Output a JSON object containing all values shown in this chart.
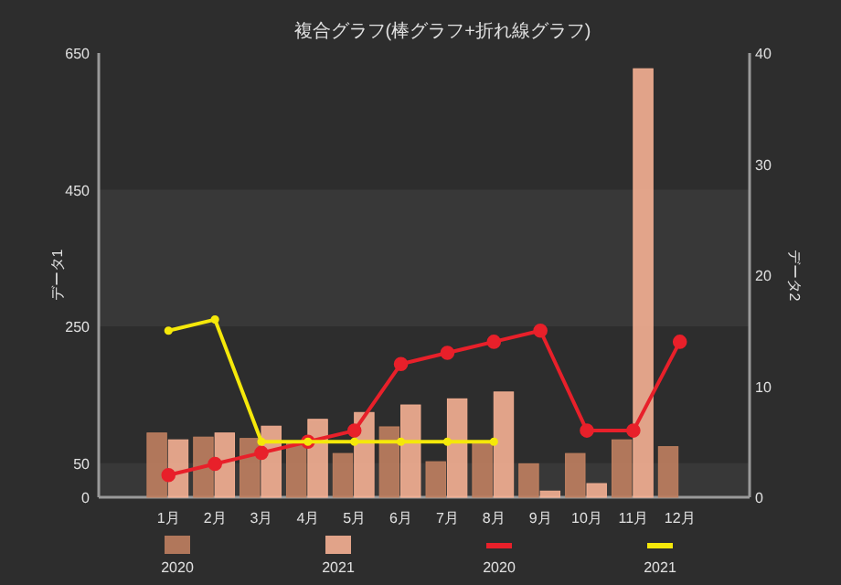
{
  "chart_data": {
    "type": "bar",
    "title": "複合グラフ(棒グラフ+折れ線グラフ)",
    "ylabel": "データ1",
    "y2label": "データ2",
    "categories": [
      "1月",
      "2月",
      "3月",
      "4月",
      "5月",
      "6月",
      "7月",
      "8月",
      "9月",
      "10月",
      "11月",
      "12月"
    ],
    "series": [
      {
        "name": "2020",
        "color": "#c08060",
        "values": [
          94,
          88,
          86,
          79,
          64,
          103,
          52,
          80,
          49,
          64,
          84,
          74
        ]
      },
      {
        "name": "2021",
        "color": "#f5b093",
        "values": [
          84,
          94,
          104,
          114,
          124,
          135,
          144,
          154,
          9,
          20,
          627,
          null
        ]
      },
      {
        "name": "2020",
        "type": "line",
        "axis": "y2",
        "color": "#e8202a",
        "values": [
          2,
          3,
          4,
          5,
          6,
          12,
          13,
          14,
          15,
          6,
          6,
          14
        ]
      },
      {
        "name": "2021",
        "type": "line",
        "axis": "y2",
        "color": "#f5e80a",
        "values": [
          15,
          16,
          5,
          5,
          5,
          5,
          5,
          5,
          null,
          null,
          null,
          null
        ]
      }
    ],
    "ylim": [
      0,
      650
    ],
    "yticks": [
      0,
      50,
      250,
      450,
      650
    ],
    "y2lim": [
      0,
      40
    ],
    "y2ticks": [
      0,
      10,
      20,
      30,
      40
    ],
    "marker": "circle",
    "legend": "bottom"
  }
}
